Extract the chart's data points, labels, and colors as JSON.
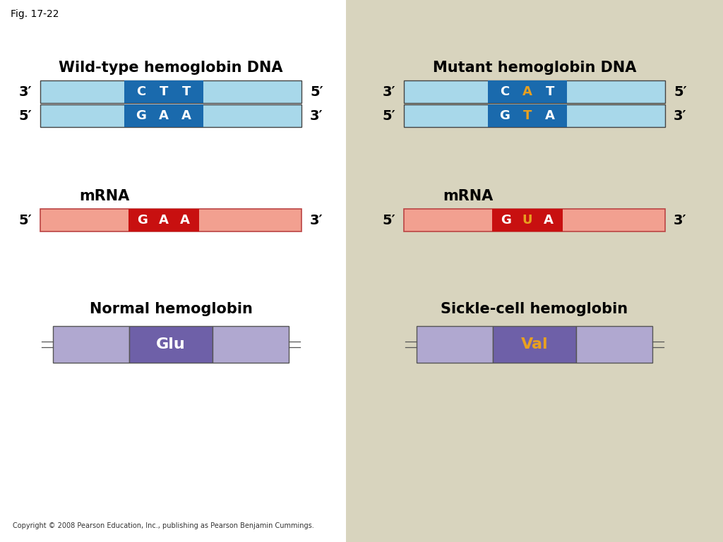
{
  "fig_label": "Fig. 17-22",
  "bg_color": "#ffffff",
  "right_panel_bg": "#d8d4be",
  "wt_title": "Wild-type hemoglobin DNA",
  "mut_title": "Mutant hemoglobin DNA",
  "wt_mrna_label": "mRNA",
  "mut_mrna_label": "mRNA",
  "normal_hb_label": "Normal hemoglobin",
  "sickle_hb_label": "Sickle-cell hemoglobin",
  "dna_light_blue": "#a8d8ea",
  "dna_dark_blue": "#1a6aad",
  "mrna_salmon": "#f2a090",
  "mrna_red_box": "#c81010",
  "wt_strand1_bases": [
    "C",
    "T",
    "T"
  ],
  "wt_strand1_colors": [
    "white",
    "white",
    "white"
  ],
  "wt_strand2_bases": [
    "G",
    "A",
    "A"
  ],
  "wt_strand2_colors": [
    "white",
    "white",
    "white"
  ],
  "mut_strand1_bases": [
    "C",
    "A",
    "T"
  ],
  "mut_strand1_colors": [
    "white",
    "#e8a020",
    "white"
  ],
  "mut_strand2_bases": [
    "G",
    "T",
    "A"
  ],
  "mut_strand2_colors": [
    "white",
    "#e8a020",
    "white"
  ],
  "wt_mrna_bases": [
    "G",
    "A",
    "A"
  ],
  "wt_mrna_colors": [
    "white",
    "white",
    "white"
  ],
  "mut_mrna_bases": [
    "G",
    "U",
    "A"
  ],
  "mut_mrna_colors": [
    "white",
    "#e8a020",
    "white"
  ],
  "protein_light_purple": "#b0a8d0",
  "protein_dark_purple": "#6e60a8",
  "glu_label": "Glu",
  "val_label": "Val",
  "val_color": "#e8a020",
  "copyright": "Copyright © 2008 Pearson Education, Inc., publishing as Pearson Benjamin Cummings."
}
